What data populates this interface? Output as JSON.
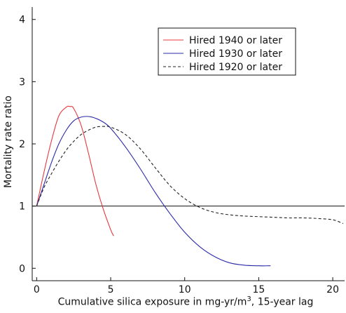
{
  "chart_data": {
    "type": "line",
    "xlabel_prefix": "Cumulative silica exposure in mg-yr/m",
    "xlabel_sup": "3",
    "xlabel_suffix": ", 15-year lag",
    "ylabel": "Mortality rate ratio",
    "xlim": [
      -0.3,
      20.8
    ],
    "ylim": [
      -0.2,
      4.2
    ],
    "xticks": [
      0,
      5,
      10,
      15,
      20
    ],
    "yticks": [
      0,
      1,
      2,
      3,
      4
    ],
    "reference_line": 1,
    "legend_position": "top-right",
    "series": [
      {
        "name": "Hired 1940 or later",
        "color": "#e8383d",
        "dash": "solid",
        "x": [
          0,
          0.5,
          1.0,
          1.5,
          2.0,
          2.25,
          2.5,
          3.0,
          3.5,
          4.0,
          4.5,
          5.0,
          5.2
        ],
        "y": [
          1.0,
          1.55,
          2.05,
          2.45,
          2.59,
          2.6,
          2.57,
          2.3,
          1.85,
          1.35,
          0.95,
          0.62,
          0.52
        ]
      },
      {
        "name": "Hired 1930 or later",
        "color": "#2b2ba8",
        "dash": "solid",
        "x": [
          0,
          0.5,
          1.0,
          1.5,
          2.0,
          2.5,
          3.0,
          3.5,
          4.0,
          4.5,
          5.0,
          6.0,
          7.0,
          8.0,
          9.0,
          10.0,
          11.0,
          12.0,
          13.0,
          14.0,
          15.0,
          15.8
        ],
        "y": [
          1.0,
          1.35,
          1.7,
          2.0,
          2.22,
          2.37,
          2.43,
          2.44,
          2.41,
          2.35,
          2.25,
          1.95,
          1.6,
          1.22,
          0.88,
          0.58,
          0.35,
          0.19,
          0.09,
          0.05,
          0.04,
          0.04
        ]
      },
      {
        "name": "Hired 1920 or later",
        "color": "#222222",
        "dash": "dashed",
        "x": [
          0,
          0.5,
          1.0,
          1.5,
          2.0,
          2.5,
          3.0,
          3.5,
          4.0,
          4.5,
          5.0,
          6.0,
          7.0,
          8.0,
          9.0,
          10.0,
          11.0,
          12.0,
          13.0,
          14.0,
          15.0,
          16.0,
          17.0,
          18.0,
          19.0,
          20.0,
          20.7
        ],
        "y": [
          1.0,
          1.3,
          1.52,
          1.72,
          1.9,
          2.04,
          2.15,
          2.22,
          2.27,
          2.28,
          2.27,
          2.15,
          1.92,
          1.62,
          1.33,
          1.12,
          0.98,
          0.9,
          0.86,
          0.84,
          0.83,
          0.82,
          0.81,
          0.81,
          0.8,
          0.78,
          0.72
        ]
      }
    ]
  }
}
